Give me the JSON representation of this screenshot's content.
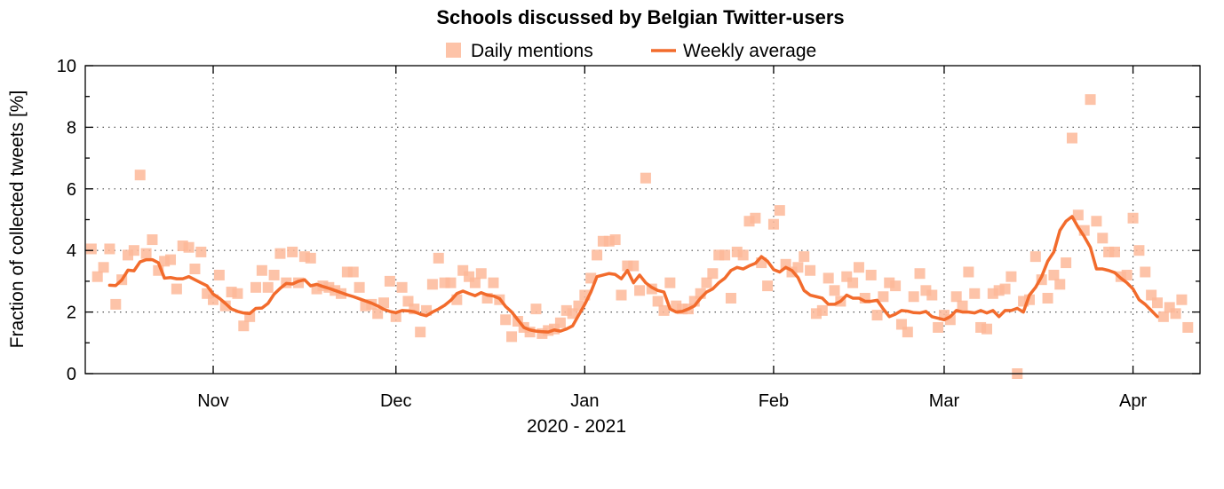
{
  "chart_data": {
    "type": "line",
    "title": "Schools discussed by Belgian Twitter-users",
    "xlabel": "2020 - 2021",
    "ylabel": "Fraction of collected tweets [%]",
    "ylim": [
      0,
      10
    ],
    "xlim": [
      "2020-10-11",
      "2021-04-12"
    ],
    "yticks": [
      0,
      2,
      4,
      6,
      8,
      10
    ],
    "xticks": [
      {
        "date": "2020-11-01",
        "label": "Nov"
      },
      {
        "date": "2020-12-01",
        "label": "Dec"
      },
      {
        "date": "2021-01-01",
        "label": "Jan"
      },
      {
        "date": "2021-02-01",
        "label": "Feb"
      },
      {
        "date": "2021-03-01",
        "label": "Mar"
      },
      {
        "date": "2021-04-01",
        "label": "Apr"
      }
    ],
    "grid": true,
    "legend_position": "top-center",
    "start_date": "2020-10-12",
    "series": [
      {
        "name": "Daily mentions",
        "kind": "scatter",
        "color": "#FDB999",
        "values": [
          4.05,
          3.15,
          3.45,
          4.05,
          2.25,
          3.05,
          3.85,
          4.0,
          6.45,
          3.9,
          4.35,
          3.35,
          3.65,
          3.7,
          2.75,
          4.15,
          4.1,
          3.4,
          3.95,
          2.6,
          2.4,
          3.2,
          2.2,
          2.65,
          2.6,
          1.55,
          1.85,
          2.8,
          3.35,
          2.8,
          3.2,
          3.9,
          2.95,
          3.95,
          2.95,
          3.8,
          3.75,
          2.75,
          2.85,
          2.8,
          2.7,
          2.6,
          3.3,
          3.3,
          2.8,
          2.2,
          2.25,
          1.95,
          2.3,
          3.0,
          1.85,
          2.8,
          2.35,
          2.1,
          1.35,
          2.05,
          2.9,
          3.75,
          2.95,
          2.95,
          2.4,
          3.35,
          3.15,
          2.95,
          3.25,
          2.45,
          2.95,
          2.4,
          1.75,
          1.2,
          1.7,
          1.5,
          1.35,
          2.1,
          1.3,
          1.4,
          1.45,
          1.65,
          2.05,
          1.95,
          2.2,
          2.55,
          3.1,
          3.85,
          4.3,
          4.3,
          4.35,
          2.55,
          3.5,
          3.5,
          2.7,
          6.35,
          2.75,
          2.35,
          2.05,
          2.95,
          2.2,
          2.1,
          2.1,
          2.35,
          2.6,
          2.95,
          3.25,
          3.85,
          3.85,
          2.45,
          3.95,
          3.85,
          4.95,
          5.05,
          3.6,
          2.85,
          4.85,
          5.3,
          3.55,
          3.3,
          3.45,
          3.8,
          3.35,
          1.95,
          2.05,
          3.1,
          2.7,
          2.35,
          3.15,
          2.95,
          3.45,
          2.45,
          3.2,
          1.9,
          2.5,
          2.95,
          2.85,
          1.6,
          1.35,
          2.5,
          3.25,
          2.7,
          2.55,
          1.5,
          1.9,
          1.75,
          2.5,
          2.2,
          3.3,
          2.6,
          1.5,
          1.45,
          2.6,
          2.7,
          2.75,
          3.15,
          0.0,
          2.35,
          2.4,
          3.8,
          3.05,
          2.45,
          3.2,
          2.9,
          3.6,
          7.65,
          5.15,
          4.65,
          8.9,
          4.95,
          4.4,
          3.95,
          3.95,
          3.15,
          3.2,
          5.05,
          4.0,
          3.3,
          2.55,
          2.3,
          1.85,
          2.15,
          1.95,
          2.4,
          1.5
        ]
      },
      {
        "name": "Weekly average",
        "kind": "line",
        "color": "#F26B2C",
        "offset": 3,
        "values": [
          2.87,
          2.86,
          3.04,
          3.36,
          3.34,
          3.63,
          3.7,
          3.7,
          3.6,
          3.1,
          3.12,
          3.08,
          3.08,
          3.15,
          3.05,
          2.95,
          2.85,
          2.58,
          2.45,
          2.28,
          2.1,
          2.02,
          1.97,
          1.95,
          2.12,
          2.13,
          2.28,
          2.58,
          2.77,
          2.93,
          2.91,
          3.0,
          3.05,
          2.85,
          2.9,
          2.83,
          2.77,
          2.7,
          2.63,
          2.56,
          2.5,
          2.43,
          2.36,
          2.29,
          2.2,
          2.09,
          2.02,
          1.98,
          2.05,
          2.04,
          2.01,
          1.93,
          1.88,
          2.0,
          2.1,
          2.22,
          2.38,
          2.6,
          2.68,
          2.6,
          2.53,
          2.63,
          2.55,
          2.52,
          2.44,
          2.18,
          2.0,
          1.75,
          1.5,
          1.42,
          1.38,
          1.36,
          1.35,
          1.42,
          1.38,
          1.45,
          1.55,
          1.9,
          2.25,
          2.65,
          3.15,
          3.2,
          3.25,
          3.22,
          3.08,
          3.35,
          2.95,
          3.2,
          2.95,
          2.8,
          2.7,
          2.65,
          2.1,
          2.0,
          2.02,
          2.1,
          2.2,
          2.45,
          2.65,
          2.75,
          2.95,
          3.1,
          3.35,
          3.45,
          3.4,
          3.5,
          3.58,
          3.8,
          3.65,
          3.38,
          3.3,
          3.45,
          3.35,
          3.12,
          2.7,
          2.55,
          2.5,
          2.45,
          2.25,
          2.25,
          2.35,
          2.55,
          2.45,
          2.45,
          2.35,
          2.35,
          2.38,
          2.1,
          1.85,
          1.93,
          2.05,
          2.03,
          1.98,
          1.97,
          2.02,
          1.85,
          1.8,
          1.75,
          1.85,
          2.05,
          2.0,
          2.0,
          1.97,
          2.05,
          1.97,
          2.05,
          1.85,
          2.05,
          2.05,
          2.12,
          2.0,
          2.55,
          2.8,
          3.15,
          3.65,
          3.95,
          4.65,
          4.95,
          5.1,
          4.75,
          4.45,
          4.1,
          3.4,
          3.4,
          3.35,
          3.28,
          3.1,
          2.95,
          2.75,
          2.4,
          2.25,
          2.05,
          1.85
        ]
      }
    ]
  }
}
